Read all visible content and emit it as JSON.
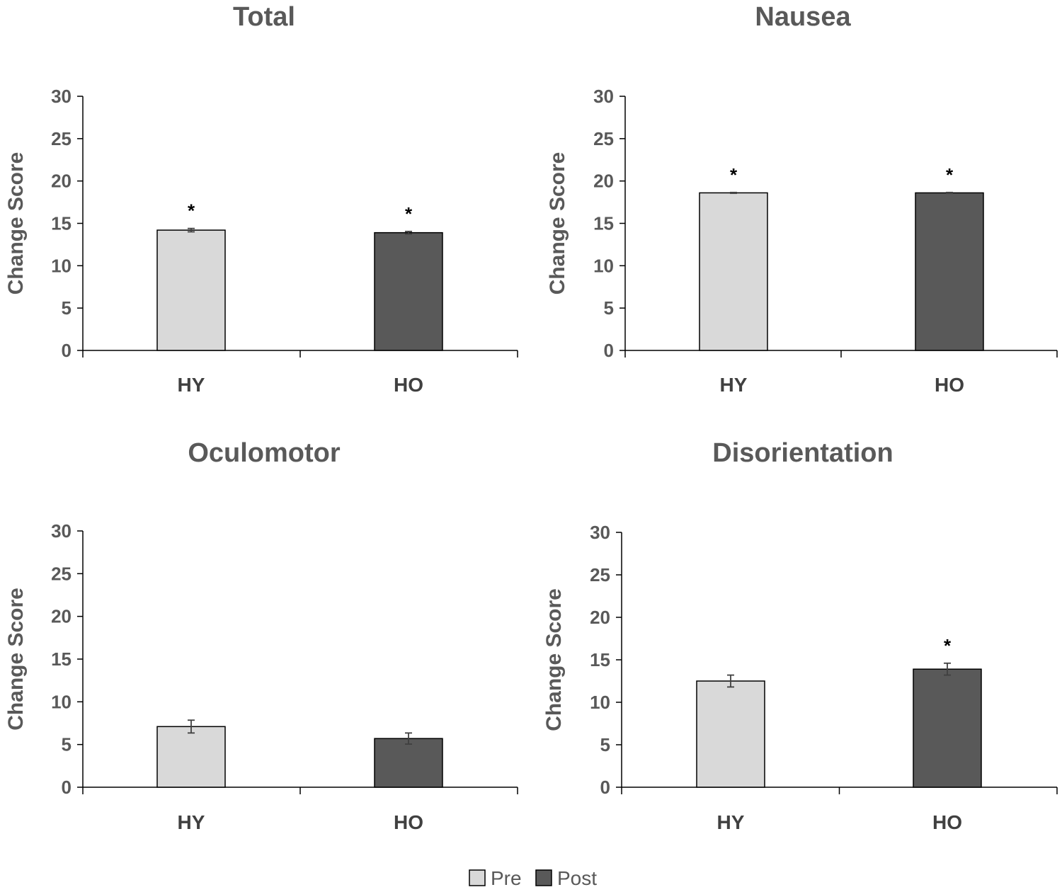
{
  "colors": {
    "pre": "#d9d9d9",
    "post": "#595959",
    "axis": "#000000",
    "text": "#595959"
  },
  "legend": [
    {
      "key": "pre",
      "label": "Pre"
    },
    {
      "key": "post",
      "label": "Post"
    }
  ],
  "chart_data": [
    {
      "type": "bar",
      "title": "Total",
      "ylabel": "Change Score",
      "ylim": [
        0,
        30
      ],
      "yticks": [
        0,
        5,
        10,
        15,
        20,
        25,
        30
      ],
      "categories": [
        "HY",
        "HO"
      ],
      "series": [
        {
          "name": "Pre",
          "key": "pre",
          "values": [
            14.2,
            null
          ]
        },
        {
          "name": "Post",
          "key": "post",
          "values": [
            null,
            13.9
          ]
        }
      ],
      "values": [
        14.2,
        13.9
      ],
      "errors": [
        0.2,
        0.15
      ],
      "annotations": [
        "*",
        "*"
      ]
    },
    {
      "type": "bar",
      "title": "Nausea",
      "ylabel": "Change Score",
      "ylim": [
        0,
        30
      ],
      "yticks": [
        0,
        5,
        10,
        15,
        20,
        25,
        30
      ],
      "categories": [
        "HY",
        "HO"
      ],
      "series": [
        {
          "name": "Pre",
          "key": "pre",
          "values": [
            18.6,
            null
          ]
        },
        {
          "name": "Post",
          "key": "post",
          "values": [
            null,
            18.6
          ]
        }
      ],
      "values": [
        18.6,
        18.6
      ],
      "errors": [
        0.05,
        0.05
      ],
      "annotations": [
        "*",
        "*"
      ]
    },
    {
      "type": "bar",
      "title": "Oculomotor",
      "ylabel": "Change Score",
      "ylim": [
        0,
        30
      ],
      "yticks": [
        0,
        5,
        10,
        15,
        20,
        25,
        30
      ],
      "categories": [
        "HY",
        "HO"
      ],
      "series": [
        {
          "name": "Pre",
          "key": "pre",
          "values": [
            7.1,
            null
          ]
        },
        {
          "name": "Post",
          "key": "post",
          "values": [
            null,
            5.7
          ]
        }
      ],
      "values": [
        7.1,
        5.7
      ],
      "errors": [
        0.75,
        0.65
      ],
      "annotations": [
        "",
        ""
      ]
    },
    {
      "type": "bar",
      "title": "Disorientation",
      "ylabel": "Change Score",
      "ylim": [
        0,
        30
      ],
      "yticks": [
        0,
        5,
        10,
        15,
        20,
        25,
        30
      ],
      "categories": [
        "HY",
        "HO"
      ],
      "series": [
        {
          "name": "Pre",
          "key": "pre",
          "values": [
            12.5,
            null
          ]
        },
        {
          "name": "Post",
          "key": "post",
          "values": [
            null,
            13.9
          ]
        }
      ],
      "values": [
        12.5,
        13.9
      ],
      "errors": [
        0.7,
        0.7
      ],
      "annotations": [
        "",
        "*"
      ]
    }
  ]
}
